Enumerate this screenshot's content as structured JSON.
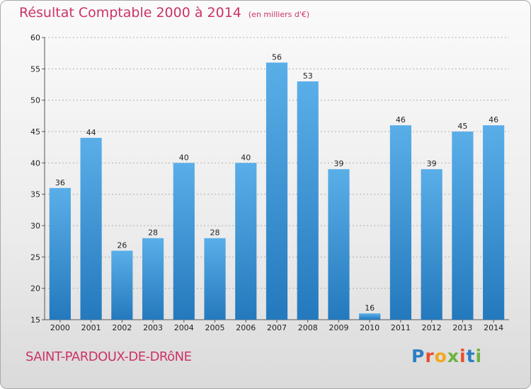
{
  "header": {
    "title": "Résultat Comptable 2000 à 2014",
    "unit": "(en milliers d'€)"
  },
  "footer": {
    "place": "SAINT-PARDOUX-DE-DRôNE",
    "logo_letters": [
      {
        "ch": "P",
        "color": "#2b7fc4"
      },
      {
        "ch": "r",
        "color": "#e94e2e"
      },
      {
        "ch": "o",
        "color": "#f2a81d"
      },
      {
        "ch": "x",
        "color": "#6cb33f"
      },
      {
        "ch": "i",
        "color": "#e94e2e"
      },
      {
        "ch": "t",
        "color": "#2b7fc4"
      },
      {
        "ch": "i",
        "color": "#6cb33f"
      }
    ]
  },
  "colors": {
    "bar_light": "#5aaee8",
    "bar_dark": "#2479bd",
    "title": "#cc3366",
    "grid": "#b0b0b0"
  },
  "chart_data": {
    "type": "bar",
    "categories": [
      "2000",
      "2001",
      "2002",
      "2003",
      "2004",
      "2005",
      "2006",
      "2007",
      "2008",
      "2009",
      "2010",
      "2011",
      "2012",
      "2013",
      "2014"
    ],
    "values": [
      36,
      44,
      26,
      28,
      40,
      28,
      40,
      56,
      53,
      39,
      16,
      46,
      39,
      45,
      46
    ],
    "ylim": [
      15,
      60
    ],
    "yticks": [
      15,
      20,
      25,
      30,
      35,
      40,
      45,
      50,
      55,
      60
    ],
    "grid": true
  }
}
